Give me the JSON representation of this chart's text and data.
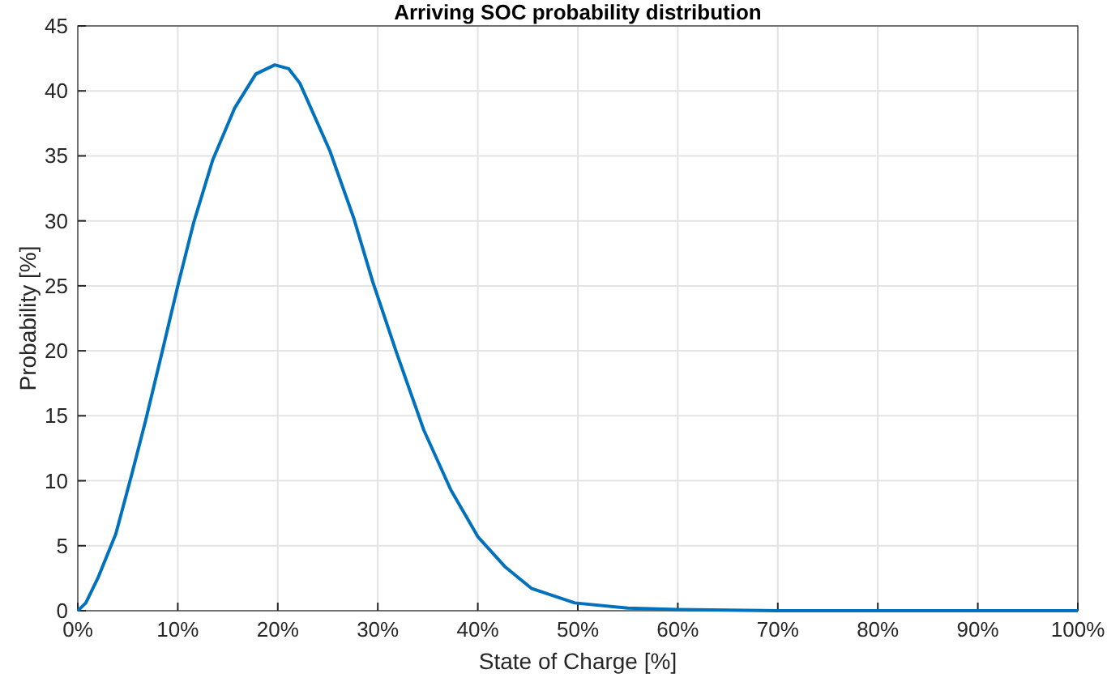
{
  "chart_data": {
    "type": "line",
    "title": "Arriving SOC probability distribution",
    "xlabel": "State of Charge [%]",
    "ylabel": "Probability [%]",
    "series": [
      {
        "color": "#0072bd",
        "x": [
          0,
          0.8,
          2,
          3.8,
          5.4,
          6.8,
          8.4,
          10,
          11.6,
          13.5,
          15.7,
          17.8,
          19.7,
          21.1,
          22.2,
          25.2,
          27.6,
          29.5,
          31.9,
          34.6,
          37.3,
          40,
          42.7,
          45.4,
          49.7,
          55,
          60,
          70,
          80,
          90,
          100
        ],
        "values": [
          0,
          0.6,
          2.5,
          5.9,
          10.5,
          14.7,
          19.8,
          25,
          29.9,
          34.7,
          38.7,
          41.3,
          42,
          41.7,
          40.6,
          35.4,
          30.2,
          25.3,
          19.8,
          13.9,
          9.3,
          5.7,
          3.4,
          1.7,
          0.6,
          0.2,
          0.1,
          0,
          0,
          0,
          0
        ]
      }
    ],
    "xlim": [
      0,
      100
    ],
    "ylim": [
      0,
      45
    ],
    "xticks": [
      {
        "value": 0,
        "label": "0%"
      },
      {
        "value": 10,
        "label": "10%"
      },
      {
        "value": 20,
        "label": "20%"
      },
      {
        "value": 30,
        "label": "30%"
      },
      {
        "value": 40,
        "label": "40%"
      },
      {
        "value": 50,
        "label": "50%"
      },
      {
        "value": 60,
        "label": "60%"
      },
      {
        "value": 70,
        "label": "70%"
      },
      {
        "value": 80,
        "label": "80%"
      },
      {
        "value": 90,
        "label": "90%"
      },
      {
        "value": 100,
        "label": "100%"
      }
    ],
    "yticks": [
      0,
      5,
      10,
      15,
      20,
      25,
      30,
      35,
      40,
      45
    ],
    "grid": true,
    "line_style": "solid"
  }
}
